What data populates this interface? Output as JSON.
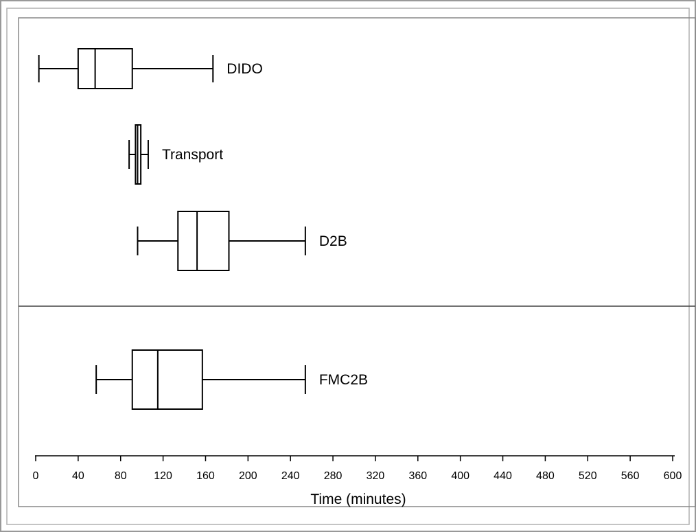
{
  "chart_data": {
    "type": "boxplot",
    "xlabel": "Time (minutes)",
    "xlim": [
      0,
      600
    ],
    "x_ticks": [
      0,
      40,
      80,
      120,
      160,
      200,
      240,
      280,
      320,
      360,
      400,
      440,
      480,
      520,
      560,
      600
    ],
    "grid": false,
    "panels": [
      {
        "series": [
          {
            "name": "DIDO",
            "min": 3,
            "q1": 40,
            "median": 56,
            "q3": 91,
            "max": 167
          },
          {
            "name": "Transport",
            "min": 88,
            "q1": 94,
            "median": 96,
            "q3": 99,
            "max": 106
          },
          {
            "name": "D2B",
            "min": 96,
            "q1": 134,
            "median": 152,
            "q3": 182,
            "max": 254
          }
        ]
      },
      {
        "series": [
          {
            "name": "FMC2B",
            "min": 57,
            "q1": 91,
            "median": 115,
            "q3": 157,
            "max": 254
          }
        ]
      }
    ]
  }
}
